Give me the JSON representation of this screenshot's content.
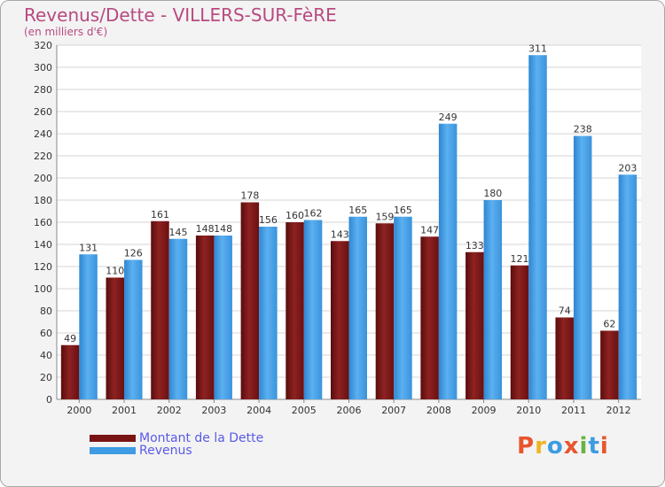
{
  "title": "Revenus/Dette - VILLERS-SUR-FèRE",
  "subtitle": "(en milliers d'€)",
  "colors": {
    "dette": "#7a1414",
    "revenus": "#3f9be3",
    "title": "#b84a80",
    "legend_text": "#5a5ae8"
  },
  "logo": {
    "letters": [
      "P",
      "r",
      "o",
      "x",
      "i",
      "t",
      "i"
    ]
  },
  "chart_data": {
    "type": "bar",
    "title": "Revenus/Dette - VILLERS-SUR-FèRE",
    "ylabel": "(en milliers d'€)",
    "xlabel": "",
    "categories": [
      "2000",
      "2001",
      "2002",
      "2003",
      "2004",
      "2005",
      "2006",
      "2007",
      "2008",
      "2009",
      "2010",
      "2011",
      "2012"
    ],
    "ylim": [
      0,
      320
    ],
    "yticks": [
      0,
      20,
      40,
      60,
      80,
      100,
      120,
      140,
      160,
      180,
      200,
      220,
      240,
      260,
      280,
      300,
      320
    ],
    "grid": true,
    "legend_position": "bottom-left",
    "series": [
      {
        "name": "Montant de la Dette",
        "color": "#7a1414",
        "values": [
          49,
          110,
          161,
          148,
          178,
          160,
          143,
          159,
          147,
          133,
          121,
          74,
          62
        ]
      },
      {
        "name": "Revenus",
        "color": "#3f9be3",
        "values": [
          131,
          126,
          145,
          148,
          156,
          162,
          165,
          165,
          249,
          180,
          311,
          238,
          203
        ]
      }
    ]
  }
}
